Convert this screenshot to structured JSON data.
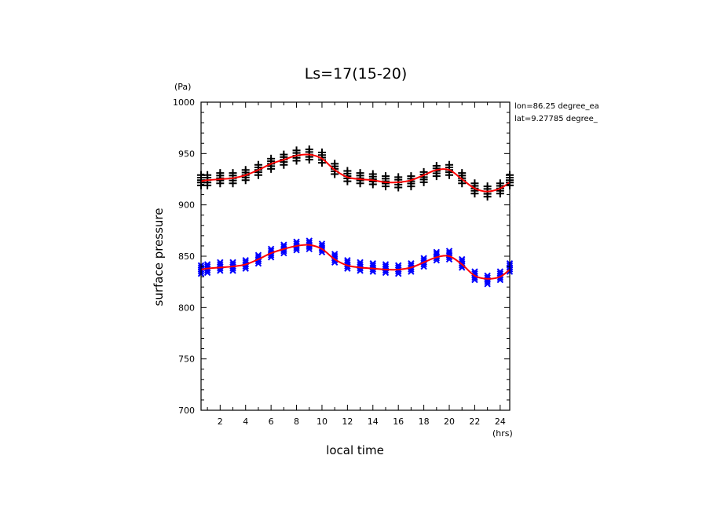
{
  "chart_data": {
    "type": "scatter",
    "title": "Ls=17(15-20)",
    "xlabel": "local time",
    "ylabel": "surface pressure",
    "x_unit": "(hrs)",
    "y_unit": "(Pa)",
    "xlim": [
      0.5,
      24.75
    ],
    "ylim": [
      700,
      1000
    ],
    "x_ticks": [
      2,
      4,
      6,
      8,
      10,
      12,
      14,
      16,
      18,
      20,
      22,
      24
    ],
    "y_ticks": [
      700,
      750,
      800,
      850,
      900,
      950,
      1000
    ],
    "annotations": [
      "lon=86.25 degree_ea",
      "lat=9.27785 degree_"
    ],
    "colors": {
      "series_upper": "#000000",
      "series_lower": "#0000ff",
      "fit": "#ff0000"
    },
    "series": [
      {
        "marker": "+",
        "color": "#000000",
        "x": [
          0.5,
          1,
          2,
          3,
          4,
          5,
          6,
          7,
          8,
          9,
          10,
          11,
          12,
          13,
          14,
          15,
          16,
          17,
          18,
          19,
          20,
          21,
          22,
          23,
          24,
          24.75
        ],
        "y": [
          924,
          924,
          926,
          926,
          929,
          934,
          940,
          944,
          948,
          949,
          946,
          935,
          928,
          926,
          925,
          923,
          922,
          923,
          927,
          933,
          934,
          926,
          916,
          913,
          916,
          924
        ],
        "spread": 5
      },
      {
        "marker": "x",
        "color": "#0000ff",
        "x": [
          0.5,
          1,
          2,
          3,
          4,
          5,
          6,
          7,
          8,
          9,
          10,
          11,
          12,
          13,
          14,
          15,
          16,
          17,
          18,
          19,
          20,
          21,
          22,
          23,
          24,
          24.75
        ],
        "y": [
          837,
          838,
          840,
          840,
          842,
          847,
          853,
          857,
          860,
          861,
          858,
          848,
          842,
          840,
          839,
          838,
          837,
          839,
          844,
          850,
          851,
          843,
          831,
          827,
          831,
          839
        ],
        "spread": 4
      }
    ],
    "fits": [
      {
        "color": "#ff0000",
        "x": [
          0.5,
          1,
          2,
          3,
          4,
          5,
          6,
          7,
          8,
          9,
          10,
          11,
          12,
          13,
          14,
          15,
          16,
          17,
          18,
          19,
          20,
          21,
          22,
          23,
          24,
          24.75
        ],
        "y": [
          923,
          924,
          925,
          926,
          929,
          934,
          940,
          944,
          948,
          949,
          945,
          934,
          927,
          925,
          924,
          922,
          922,
          924,
          929,
          934,
          934,
          925,
          916,
          913,
          916,
          922
        ]
      },
      {
        "color": "#ff0000",
        "x": [
          0.5,
          1,
          2,
          3,
          4,
          5,
          6,
          7,
          8,
          9,
          10,
          11,
          12,
          13,
          14,
          15,
          16,
          17,
          18,
          19,
          20,
          21,
          22,
          23,
          24,
          24.75
        ],
        "y": [
          837,
          838,
          839,
          840,
          842,
          847,
          853,
          857,
          860,
          861,
          857,
          847,
          841,
          839,
          838,
          837,
          837,
          839,
          844,
          849,
          850,
          842,
          831,
          828,
          830,
          837
        ]
      }
    ]
  }
}
